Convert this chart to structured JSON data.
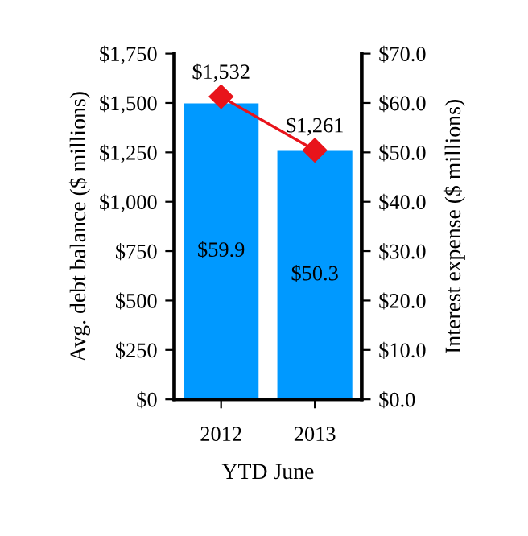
{
  "chart_data": {
    "type": "bar",
    "xlabel": "YTD June",
    "ylabel": "Avg. debt balance ($ millions)",
    "y2label": "Interest expense ($ millions)",
    "categories": [
      "2012",
      "2013"
    ],
    "series": [
      {
        "axis": "y2",
        "color": "#0099ff",
        "values": [
          59.9,
          50.3
        ],
        "value_labels": [
          "$59.9",
          "$50.3"
        ]
      },
      {
        "type": "line",
        "axis": "y",
        "color": "#e8141b",
        "values": [
          1532,
          1261
        ],
        "value_labels": [
          "$1,532",
          "$1,261"
        ],
        "marker": "diamond",
        "line_style": "solid"
      }
    ],
    "ylim": [
      0,
      1750
    ],
    "yticks": [
      {
        "value": 0,
        "label": "$0"
      },
      {
        "value": 250,
        "label": "$250"
      },
      {
        "value": 500,
        "label": "$500"
      },
      {
        "value": 750,
        "label": "$750"
      },
      {
        "value": 1000,
        "label": "$1,000"
      },
      {
        "value": 1250,
        "label": "$1,250"
      },
      {
        "value": 1500,
        "label": "$1,500"
      },
      {
        "value": 1750,
        "label": "$1,750"
      }
    ],
    "y2lim": [
      0,
      70
    ],
    "y2ticks": [
      {
        "value": 0,
        "label": "$0.0"
      },
      {
        "value": 10,
        "label": "$10.0"
      },
      {
        "value": 20,
        "label": "$20.0"
      },
      {
        "value": 30,
        "label": "$30.0"
      },
      {
        "value": 40,
        "label": "$40.0"
      },
      {
        "value": 50,
        "label": "$50.0"
      },
      {
        "value": 60,
        "label": "$60.0"
      },
      {
        "value": 70,
        "label": "$70.0"
      }
    ],
    "grid": false,
    "legend": false
  }
}
